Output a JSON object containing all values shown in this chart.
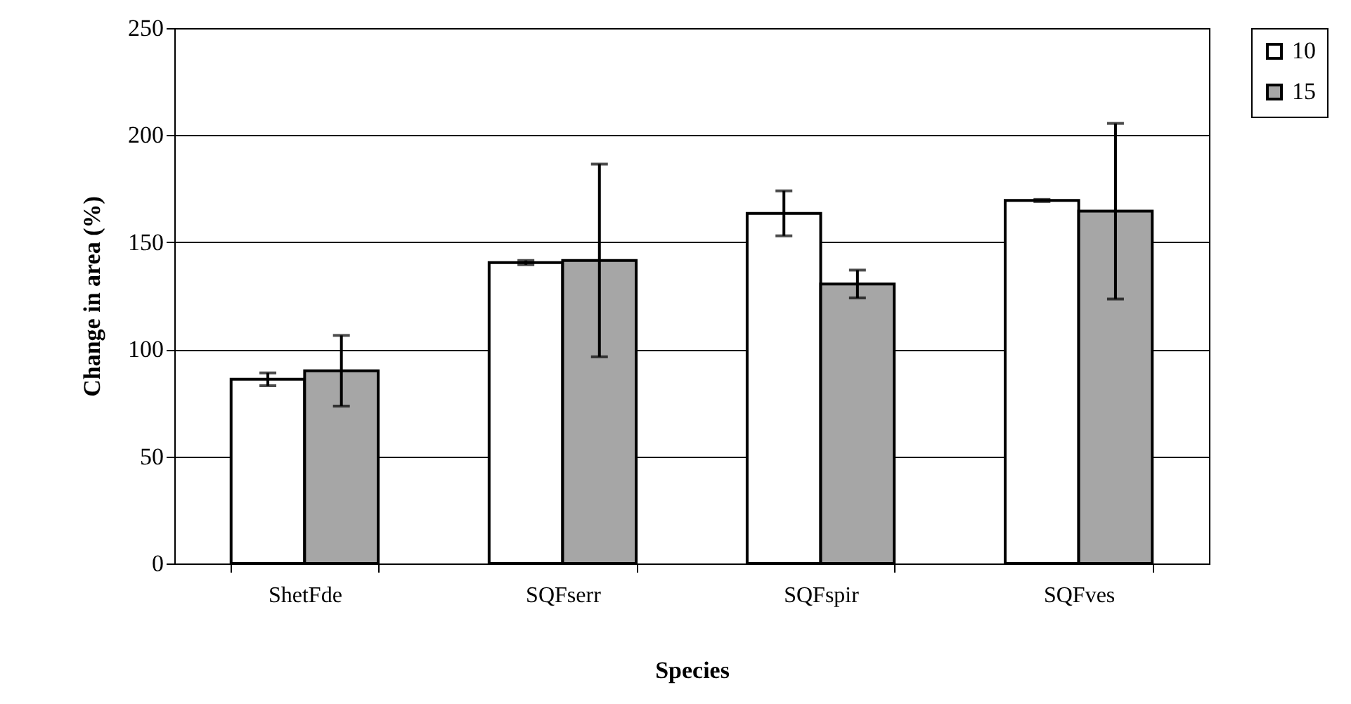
{
  "chart_data": {
    "type": "bar",
    "xlabel": "Species",
    "ylabel": "Change in area (%)",
    "categories": [
      "ShetFde",
      "SQFserr",
      "SQFspir",
      "SQFves"
    ],
    "series": [
      {
        "name": "10",
        "color": "#ffffff",
        "values": [
          86,
          140.5,
          163.5,
          169.5
        ],
        "errors": [
          3,
          1,
          10.5,
          0.5
        ]
      },
      {
        "name": "15",
        "color": "#a6a6a6",
        "values": [
          90,
          141.5,
          130.5,
          164.5
        ],
        "errors": [
          16.5,
          45,
          6.5,
          41
        ]
      }
    ],
    "ylim": [
      0,
      250
    ],
    "yticks": [
      0,
      50,
      100,
      150,
      200,
      250
    ],
    "grid": "y",
    "legend": "right"
  }
}
